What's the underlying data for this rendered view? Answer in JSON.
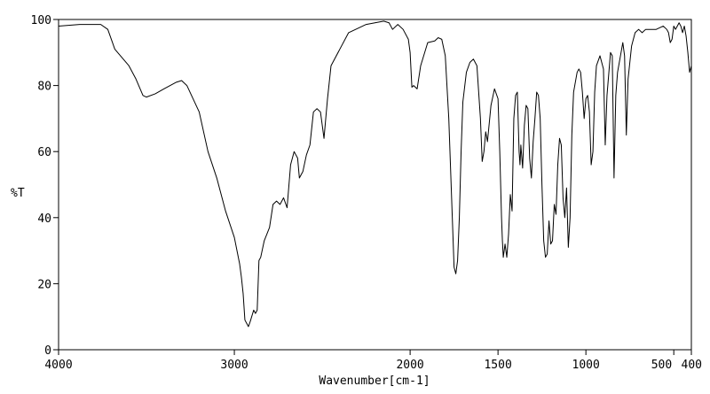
{
  "chart_data": {
    "type": "line",
    "title": "",
    "xlabel": "Wavenumber[cm-1]",
    "ylabel": "%T",
    "xlim": [
      4000,
      400
    ],
    "ylim": [
      0,
      100
    ],
    "x_reversed": true,
    "grid": false,
    "legend": "none",
    "x_ticks": [
      {
        "value": 4000,
        "label": "4000"
      },
      {
        "value": 3000,
        "label": "3000"
      },
      {
        "value": 2000,
        "label": "2000"
      },
      {
        "value": 1500,
        "label": "1500"
      },
      {
        "value": 1000,
        "label": "1000"
      },
      {
        "value": 500,
        "label": "500"
      },
      {
        "value": 400,
        "label": "400"
      }
    ],
    "y_ticks": [
      {
        "value": 0,
        "label": "0"
      },
      {
        "value": 20,
        "label": "20"
      },
      {
        "value": 40,
        "label": "40"
      },
      {
        "value": 60,
        "label": "60"
      },
      {
        "value": 80,
        "label": "80"
      },
      {
        "value": 100,
        "label": "100"
      }
    ],
    "colors": {
      "line": "#000000",
      "axis": "#000000",
      "background": "#ffffff"
    },
    "series": [
      {
        "points": [
          [
            4000,
            98
          ],
          [
            3880,
            98.5
          ],
          [
            3760,
            98.5
          ],
          [
            3720,
            97
          ],
          [
            3680,
            91
          ],
          [
            3600,
            86
          ],
          [
            3560,
            82
          ],
          [
            3520,
            77
          ],
          [
            3500,
            76.5
          ],
          [
            3450,
            77.5
          ],
          [
            3400,
            79
          ],
          [
            3330,
            81
          ],
          [
            3300,
            81.5
          ],
          [
            3270,
            80
          ],
          [
            3200,
            72
          ],
          [
            3150,
            60
          ],
          [
            3100,
            52
          ],
          [
            3050,
            42
          ],
          [
            3000,
            34
          ],
          [
            2970,
            26
          ],
          [
            2960,
            22
          ],
          [
            2950,
            17
          ],
          [
            2940,
            9
          ],
          [
            2930,
            8
          ],
          [
            2920,
            7
          ],
          [
            2910,
            8.5
          ],
          [
            2890,
            12
          ],
          [
            2880,
            11
          ],
          [
            2870,
            12
          ],
          [
            2860,
            27
          ],
          [
            2850,
            28
          ],
          [
            2830,
            33
          ],
          [
            2800,
            37
          ],
          [
            2780,
            44
          ],
          [
            2760,
            45
          ],
          [
            2740,
            44
          ],
          [
            2720,
            46
          ],
          [
            2700,
            43
          ],
          [
            2680,
            56
          ],
          [
            2660,
            60
          ],
          [
            2640,
            58
          ],
          [
            2630,
            52
          ],
          [
            2610,
            54
          ],
          [
            2590,
            59
          ],
          [
            2570,
            62
          ],
          [
            2550,
            72
          ],
          [
            2530,
            73
          ],
          [
            2510,
            72
          ],
          [
            2490,
            64
          ],
          [
            2470,
            76
          ],
          [
            2450,
            86
          ],
          [
            2400,
            91
          ],
          [
            2350,
            96
          ],
          [
            2250,
            98.5
          ],
          [
            2150,
            99.5
          ],
          [
            2120,
            99
          ],
          [
            2100,
            97
          ],
          [
            2070,
            98.5
          ],
          [
            2040,
            97
          ],
          [
            2010,
            94
          ],
          [
            2000,
            90
          ],
          [
            1990,
            79.5
          ],
          [
            1980,
            80
          ],
          [
            1960,
            79
          ],
          [
            1940,
            86
          ],
          [
            1900,
            93
          ],
          [
            1860,
            93.5
          ],
          [
            1840,
            94.5
          ],
          [
            1820,
            94
          ],
          [
            1800,
            89
          ],
          [
            1780,
            70
          ],
          [
            1760,
            40
          ],
          [
            1750,
            25
          ],
          [
            1740,
            23
          ],
          [
            1730,
            27
          ],
          [
            1720,
            40
          ],
          [
            1710,
            60
          ],
          [
            1700,
            75
          ],
          [
            1680,
            84
          ],
          [
            1660,
            87
          ],
          [
            1640,
            88
          ],
          [
            1620,
            86
          ],
          [
            1600,
            70
          ],
          [
            1590,
            57
          ],
          [
            1580,
            60
          ],
          [
            1570,
            66
          ],
          [
            1560,
            63
          ],
          [
            1540,
            74
          ],
          [
            1520,
            79
          ],
          [
            1500,
            76
          ],
          [
            1490,
            60
          ],
          [
            1480,
            40
          ],
          [
            1475,
            33
          ],
          [
            1470,
            28
          ],
          [
            1460,
            32
          ],
          [
            1450,
            28
          ],
          [
            1440,
            35
          ],
          [
            1430,
            47
          ],
          [
            1420,
            42
          ],
          [
            1410,
            70
          ],
          [
            1400,
            77
          ],
          [
            1390,
            78
          ],
          [
            1380,
            60
          ],
          [
            1375,
            56
          ],
          [
            1370,
            62
          ],
          [
            1360,
            55
          ],
          [
            1350,
            68
          ],
          [
            1340,
            74
          ],
          [
            1330,
            73
          ],
          [
            1320,
            58
          ],
          [
            1310,
            52
          ],
          [
            1300,
            63
          ],
          [
            1290,
            70
          ],
          [
            1280,
            78
          ],
          [
            1270,
            77
          ],
          [
            1260,
            70
          ],
          [
            1250,
            50
          ],
          [
            1240,
            33
          ],
          [
            1230,
            28
          ],
          [
            1220,
            29
          ],
          [
            1210,
            39
          ],
          [
            1200,
            32
          ],
          [
            1190,
            33
          ],
          [
            1180,
            44
          ],
          [
            1170,
            41
          ],
          [
            1160,
            56
          ],
          [
            1150,
            64
          ],
          [
            1140,
            62
          ],
          [
            1130,
            46
          ],
          [
            1120,
            40
          ],
          [
            1110,
            49
          ],
          [
            1100,
            31
          ],
          [
            1090,
            40
          ],
          [
            1080,
            65
          ],
          [
            1070,
            78
          ],
          [
            1050,
            84
          ],
          [
            1040,
            85
          ],
          [
            1030,
            84
          ],
          [
            1020,
            78
          ],
          [
            1010,
            70
          ],
          [
            1000,
            76
          ],
          [
            990,
            77
          ],
          [
            980,
            72
          ],
          [
            970,
            56
          ],
          [
            960,
            60
          ],
          [
            950,
            78
          ],
          [
            940,
            86
          ],
          [
            920,
            89
          ],
          [
            900,
            85
          ],
          [
            890,
            62
          ],
          [
            880,
            77
          ],
          [
            860,
            90
          ],
          [
            850,
            89
          ],
          [
            840,
            52
          ],
          [
            830,
            77
          ],
          [
            820,
            84
          ],
          [
            800,
            90
          ],
          [
            790,
            93
          ],
          [
            780,
            89
          ],
          [
            770,
            65
          ],
          [
            760,
            82
          ],
          [
            740,
            92
          ],
          [
            720,
            96
          ],
          [
            700,
            97
          ],
          [
            680,
            96
          ],
          [
            660,
            97
          ],
          [
            600,
            97
          ],
          [
            560,
            98
          ],
          [
            540,
            97
          ],
          [
            530,
            96
          ],
          [
            520,
            93
          ],
          [
            510,
            94
          ],
          [
            500,
            98
          ],
          [
            490,
            97
          ],
          [
            480,
            98
          ],
          [
            470,
            99
          ],
          [
            460,
            98
          ],
          [
            450,
            96
          ],
          [
            440,
            98
          ],
          [
            430,
            95
          ],
          [
            420,
            90
          ],
          [
            410,
            84
          ],
          [
            400,
            86
          ]
        ]
      }
    ]
  }
}
